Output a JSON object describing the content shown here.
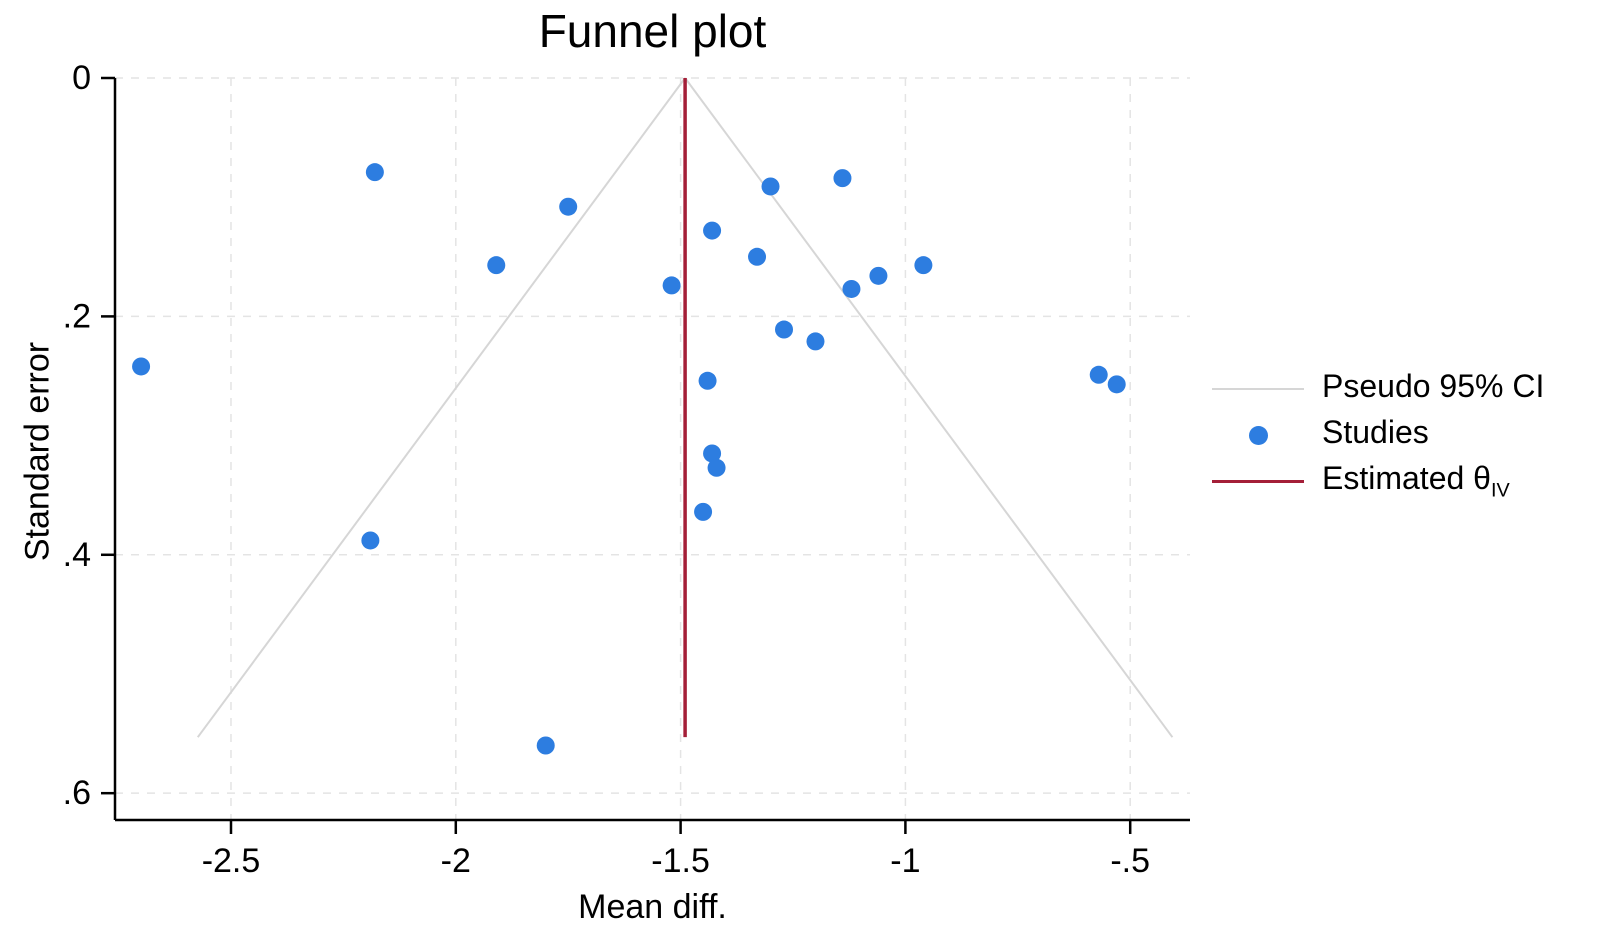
{
  "chart_data": {
    "type": "scatter",
    "title": "Funnel plot",
    "xlabel": "Mean diff.",
    "ylabel": "Standard error",
    "xlim": [
      -2.758,
      -0.367
    ],
    "ylim": [
      0,
      0.6225
    ],
    "y_axis_inverted": true,
    "grid": true,
    "legend_position": "right-outside",
    "x_ticks": [
      -2.5,
      -2,
      -1.5,
      -1,
      -0.5
    ],
    "x_tick_labels": [
      "-2.5",
      "-2",
      "-1.5",
      "-1",
      "-.5"
    ],
    "y_ticks": [
      0,
      0.2,
      0.4,
      0.6
    ],
    "y_tick_labels": [
      "0",
      ".2",
      ".4",
      ".6"
    ],
    "estimate_line": {
      "x": -1.49,
      "se_from": 0,
      "se_to": 0.553,
      "color": "#a41f38"
    },
    "funnel": {
      "apex_x": -1.49,
      "z": 1.96,
      "max_se": 0.553,
      "color": "#d6d6d6"
    },
    "series": [
      {
        "name": "Studies",
        "marker": "circle",
        "color": "#2d7de0",
        "points": [
          [
            -2.7,
            0.242
          ],
          [
            -2.19,
            0.388
          ],
          [
            -2.18,
            0.079
          ],
          [
            -1.91,
            0.157
          ],
          [
            -1.8,
            0.56
          ],
          [
            -1.75,
            0.108
          ],
          [
            -1.52,
            0.174
          ],
          [
            -1.45,
            0.364
          ],
          [
            -1.44,
            0.254
          ],
          [
            -1.43,
            0.128
          ],
          [
            -1.43,
            0.315
          ],
          [
            -1.42,
            0.327
          ],
          [
            -1.33,
            0.15
          ],
          [
            -1.3,
            0.091
          ],
          [
            -1.27,
            0.211
          ],
          [
            -1.2,
            0.221
          ],
          [
            -1.14,
            0.084
          ],
          [
            -1.12,
            0.177
          ],
          [
            -1.06,
            0.166
          ],
          [
            -0.96,
            0.157
          ],
          [
            -0.57,
            0.249
          ],
          [
            -0.53,
            0.257
          ]
        ]
      }
    ],
    "legend": [
      {
        "label": "Pseudo 95% CI",
        "sub": "",
        "marker": "line",
        "color": "#d6d6d6"
      },
      {
        "label": "Studies",
        "sub": "",
        "marker": "dot",
        "color": "#2d7de0"
      },
      {
        "label": "Estimated θ",
        "sub": "IV",
        "marker": "line",
        "color": "#a41f38"
      }
    ]
  },
  "colors": {
    "background": "#ffffff",
    "axis": "#000000",
    "gridline": "#e4e4e4",
    "funnel_line": "#d6d6d6",
    "study_dot": "#2d7de0",
    "estimate_line": "#a41f38",
    "text": "#000000"
  }
}
